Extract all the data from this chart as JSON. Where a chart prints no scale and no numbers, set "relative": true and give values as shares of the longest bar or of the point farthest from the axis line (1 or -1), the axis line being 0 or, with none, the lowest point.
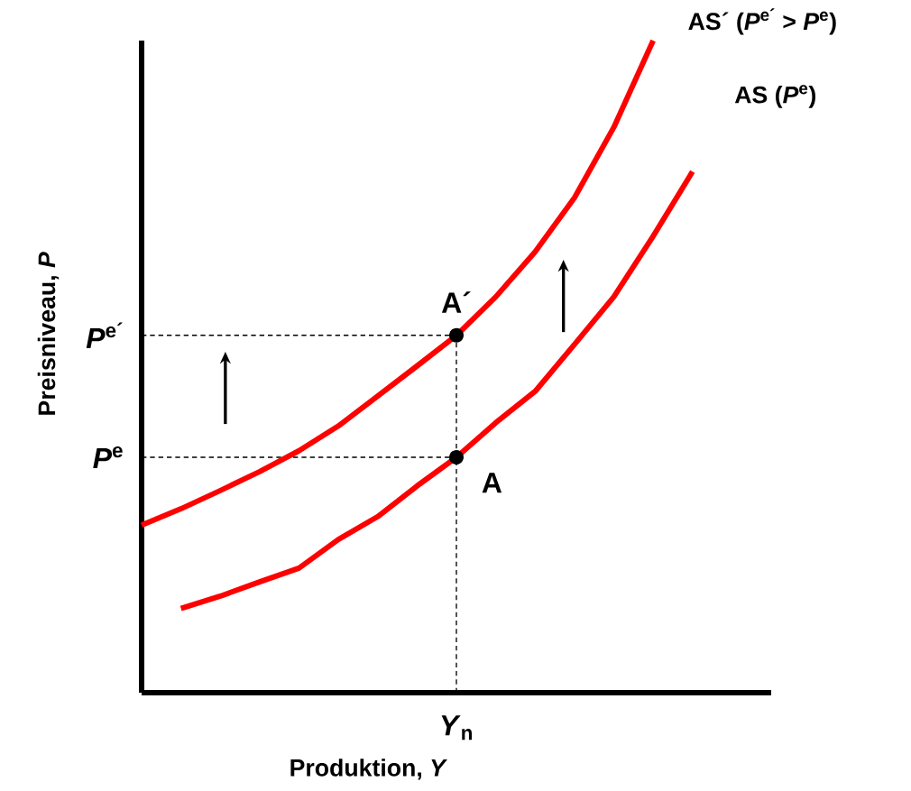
{
  "chart_data": {
    "type": "line",
    "relative": true,
    "xlabel": "Produktion, *Y*",
    "ylabel": "Preisniveau, *P*",
    "line_style": "solid",
    "marker": "none",
    "categories": [
      null,
      null,
      null,
      null,
      null,
      null,
      null,
      null,
      null,
      null,
      null,
      null,
      null,
      null,
      null,
      null,
      null
    ],
    "series": [
      {
        "name": "AS´ (*P*$^{e´}$ > *P*$^{e}$)",
        "color": "#ff0000",
        "values": [
          0.257,
          0.282,
          0.31,
          0.339,
          0.371,
          0.409,
          0.455,
          0.501,
          0.548,
          0.607,
          0.676,
          0.759,
          0.867,
          1.0,
          null,
          null,
          null
        ]
      },
      {
        "name": "AS (*P*$^{e}$)",
        "color": "#ff0000",
        "values": [
          null,
          0.129,
          0.148,
          0.17,
          0.191,
          0.235,
          0.27,
          0.317,
          0.361,
          0.414,
          0.462,
          0.534,
          0.607,
          0.7,
          0.799,
          null,
          null
        ]
      }
    ],
    "ref_lines": [
      {
        "axis": "y",
        "value": 0.548,
        "label": "*P*$^{e´}$",
        "line_style": "dashed",
        "color": "#000000"
      },
      {
        "axis": "y",
        "value": 0.361,
        "label": "*P*$^{e}$",
        "line_style": "dashed",
        "color": "#000000"
      }
    ],
    "annotations": [
      "A´",
      "A",
      "*Y*$_{n}$"
    ]
  }
}
